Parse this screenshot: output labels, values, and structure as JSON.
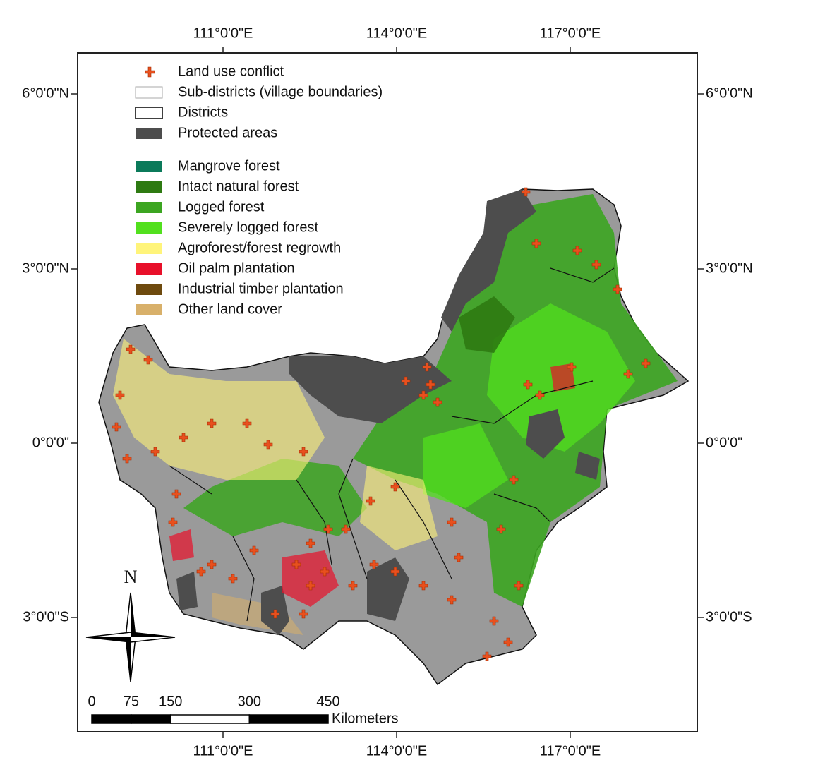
{
  "graticule": {
    "longitudes": [
      "111°0'0\"E",
      "114°0'0\"E",
      "117°0'0\"E"
    ],
    "latitudes": [
      "6°0'0\"N",
      "3°0'0\"N",
      "0°0'0\"",
      "3°0'0\"S"
    ]
  },
  "legend": [
    {
      "label": "Land use conflict",
      "color": "#e8501e"
    },
    {
      "label": "Sub-districts (village boundaries)",
      "color": "#ffffff"
    },
    {
      "label": "Districts",
      "color": "#ffffff"
    },
    {
      "label": "Protected areas",
      "color": "#4d4d4d"
    },
    {
      "label": "Mangrove forest",
      "color": "#0b7a5a"
    },
    {
      "label": "Intact natural forest",
      "color": "#2e7a12"
    },
    {
      "label": "Logged forest",
      "color": "#3ca521"
    },
    {
      "label": "Severely logged forest",
      "color": "#52e01e"
    },
    {
      "label": "Agroforest/forest regrowth",
      "color": "#fff47a"
    },
    {
      "label": "Oil palm plantation",
      "color": "#e8102a"
    },
    {
      "label": "Industrial timber plantation",
      "color": "#6e4a0e"
    },
    {
      "label": "Other land cover",
      "color": "#d8b06a"
    }
  ],
  "north_arrow": "N",
  "scale_bar": {
    "ticks": [
      0,
      75,
      150,
      300,
      450
    ],
    "unit": "Kilometers"
  }
}
